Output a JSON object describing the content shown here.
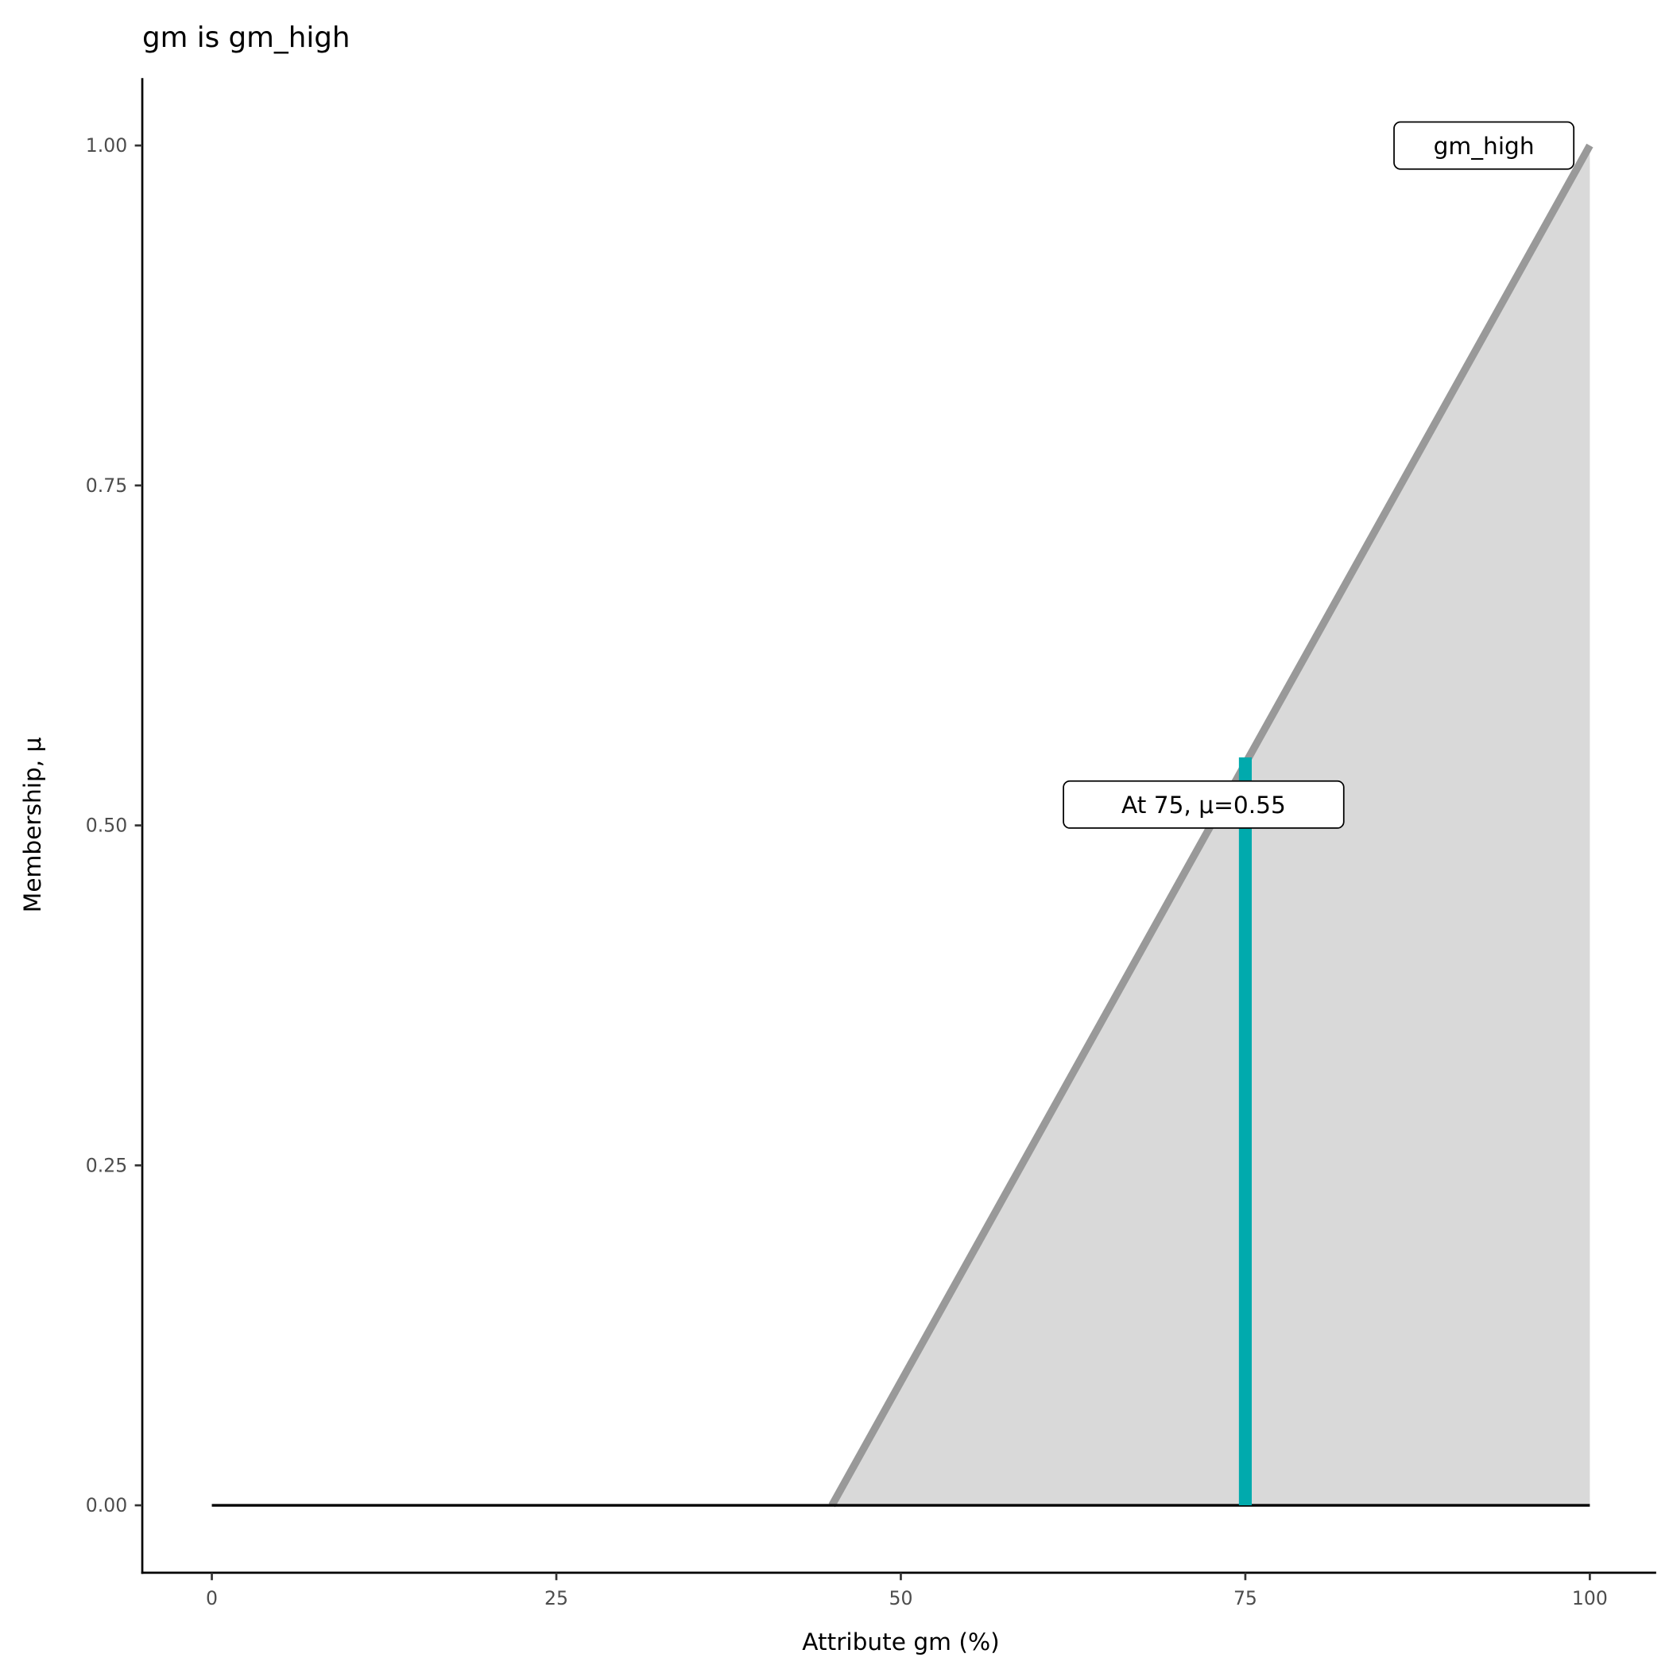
{
  "chart_data": {
    "type": "area",
    "title": "gm is gm_high",
    "xlabel": "Attribute gm (%)",
    "ylabel": "Membership, μ",
    "xlim": [
      -5,
      105
    ],
    "ylim": [
      -0.05,
      1.05
    ],
    "x_ticks": [
      0,
      25,
      50,
      75,
      100
    ],
    "x_tick_labels": [
      "0",
      "25",
      "50",
      "75",
      "100"
    ],
    "y_ticks": [
      0,
      0.25,
      0.5,
      0.75,
      1
    ],
    "y_tick_labels": [
      "0.00",
      "0.25",
      "0.50",
      "0.75",
      "1.00"
    ],
    "grid": false,
    "membership_function": {
      "name": "gm_high",
      "x": [
        45,
        100
      ],
      "y": [
        0,
        1
      ],
      "line_color": "#999999",
      "fill_color": "#d9d9d9"
    },
    "baseline": {
      "x": [
        0,
        100
      ],
      "y": 0,
      "color": "#000000"
    },
    "evaluation": {
      "x": 75,
      "mu": 0.55,
      "color": "#00aaad",
      "label": "At 75, μ=0.55"
    },
    "series_label": "gm_high"
  }
}
